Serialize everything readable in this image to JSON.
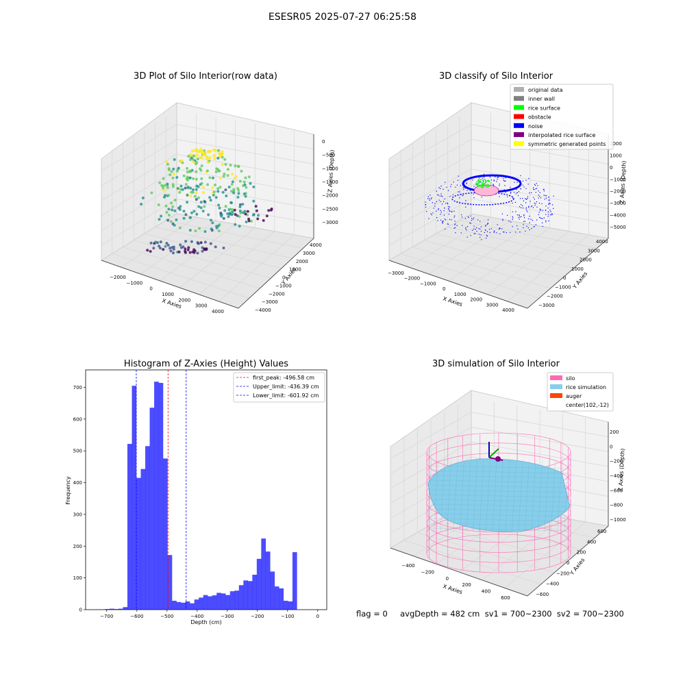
{
  "suptitle": "ESESR05 2025-07-27 06:25:58",
  "status_text": "flag = 0     avgDepth = 482 cm  sv1 = 700~2300  sv2 = 700~2300",
  "chart_data": [
    {
      "type": "scatter",
      "title": "3D Plot of Silo Interior(row data)",
      "xlabel": "X Axies",
      "ylabel": "Y Axies",
      "zlabel": "Z Axies (Depth)",
      "x_ticks": [
        "−2000",
        "−1000",
        "0",
        "1000",
        "2000",
        "3000",
        "4000"
      ],
      "y_ticks": [
        "−4000",
        "−3000",
        "−2000",
        "−1000",
        "0",
        "1000",
        "2000",
        "3000",
        "4000"
      ],
      "z_ticks": [
        "0",
        "−500",
        "−1000",
        "−1500",
        "−2000",
        "−2500",
        "−3000"
      ],
      "colormap": [
        "#440154",
        "#3b528b",
        "#21918c",
        "#5ec962",
        "#fde725"
      ]
    },
    {
      "type": "scatter",
      "title": "3D classify of Silo Interior",
      "xlabel": "X Axies",
      "ylabel": "Y Axies",
      "zlabel": "Z Axies (Depth)",
      "x_ticks": [
        "−3000",
        "−2000",
        "−1000",
        "0",
        "1000",
        "2000",
        "3000",
        "4000"
      ],
      "y_ticks": [
        "−3000",
        "−2000",
        "−1000",
        "0",
        "1000",
        "2000",
        "3000",
        "4000"
      ],
      "z_ticks": [
        "2000",
        "1000",
        "0",
        "−1000",
        "−2000",
        "−3000",
        "−4000",
        "−5000"
      ],
      "legend_position": "top-right",
      "legend": [
        {
          "label": "original data",
          "color": "#b0b0b0"
        },
        {
          "label": "inner wall",
          "color": "#808080"
        },
        {
          "label": "rice surface",
          "color": "#00ff00"
        },
        {
          "label": "obstacle",
          "color": "#ff0000"
        },
        {
          "label": "noise",
          "color": "#0000ff"
        },
        {
          "label": "interpolated rice surface",
          "color": "#800080"
        },
        {
          "label": "symmetric generated points",
          "color": "#ffff00"
        }
      ]
    },
    {
      "type": "bar",
      "title": "Histogram of Z-Axies (Height) Values",
      "xlabel": "Depth (cm)",
      "ylabel": "Frequency",
      "xlim": [
        -770,
        30
      ],
      "ylim": [
        0,
        755
      ],
      "x_ticks": [
        -700,
        -600,
        -500,
        -400,
        -300,
        -200,
        -100,
        0
      ],
      "y_ticks": [
        0,
        100,
        200,
        300,
        400,
        500,
        600,
        700
      ],
      "bar_color": "#0000ff",
      "bin_width": 14.8,
      "bin_start": -735,
      "values": [
        1,
        1,
        2,
        3,
        2,
        3,
        8,
        522,
        705,
        415,
        443,
        515,
        636,
        718,
        714,
        476,
        172,
        28,
        24,
        22,
        26,
        20,
        32,
        38,
        46,
        42,
        45,
        53,
        51,
        46,
        58,
        60,
        77,
        92,
        90,
        110,
        160,
        224,
        183,
        120,
        73,
        67,
        28,
        26,
        181
      ],
      "lines": [
        {
          "label": "first_peak: -496.58 cm",
          "x": -496.58,
          "color": "#ff0000"
        },
        {
          "label": "Upper_limit: -436.39 cm",
          "x": -436.39,
          "color": "#0000ff"
        },
        {
          "label": "Lower_limit: -601.92 cm",
          "x": -601.92,
          "color": "#0000ff"
        }
      ],
      "legend_position": "top-right"
    },
    {
      "type": "area",
      "title": "3D simulation of Silo Interior",
      "xlabel": "X Axies",
      "ylabel": "Y Axies",
      "zlabel": "Z Axies (Depth)",
      "x_ticks": [
        "−400",
        "−200",
        "0",
        "200",
        "400",
        "600"
      ],
      "y_ticks": [
        "−600",
        "−400",
        "−200",
        "0",
        "200",
        "400",
        "600"
      ],
      "z_ticks": [
        "200",
        "0",
        "−200",
        "−400",
        "−600",
        "−800",
        "−1000"
      ],
      "legend_position": "top-right",
      "legend": [
        {
          "label": "silo",
          "color": "#ff69b4"
        },
        {
          "label": "rice simulation",
          "color": "#87ceeb"
        },
        {
          "label": "auger",
          "color": "#ff4500"
        },
        {
          "label": "center(102,-12)",
          "color": ""
        }
      ]
    }
  ]
}
